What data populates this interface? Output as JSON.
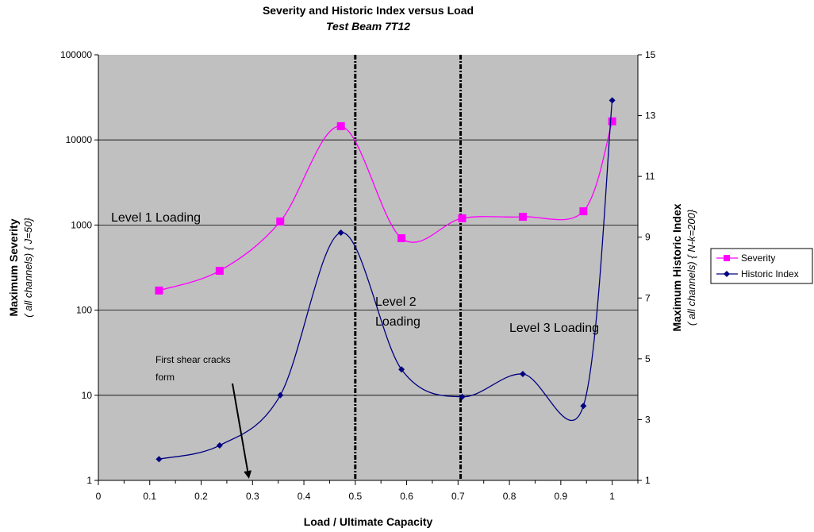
{
  "chart_data": {
    "type": "line",
    "title": "Severity and Historic Index versus Load",
    "subtitle": "Test Beam 7T12",
    "xlabel": "Load / Ultimate Capacity",
    "ylabel_left": "Maximum Severity",
    "ylabel_left_sub": "( all channels) { J=50}",
    "ylabel_right": "Maximum Historic Index",
    "ylabel_right_sub": "( all channels) { N-k=200}",
    "xlim": [
      0,
      1.05
    ],
    "x_ticks": [
      "0",
      "0.1",
      "0.2",
      "0.3",
      "0.4",
      "0.5",
      "0.6",
      "0.7",
      "0.8",
      "0.9",
      "1"
    ],
    "y_left_scale": "log",
    "y_left_lim": [
      1,
      100000
    ],
    "y_left_ticks": [
      "1",
      "10",
      "100",
      "1000",
      "10000",
      "100000"
    ],
    "y_right_lim": [
      1,
      15
    ],
    "y_right_ticks": [
      "1",
      "3",
      "5",
      "7",
      "9",
      "11",
      "13",
      "15"
    ],
    "grid": "horizontal",
    "plot_background": "#c0c0c0",
    "legend_position": "right",
    "series": [
      {
        "name": "Severity",
        "axis": "left",
        "color": "#ff00ff",
        "marker": "square",
        "x": [
          0.118,
          0.236,
          0.354,
          0.472,
          0.59,
          0.708,
          0.826,
          0.944,
          1.0
        ],
        "values": [
          170,
          290,
          1100,
          14500,
          700,
          1200,
          1250,
          1450,
          16500
        ]
      },
      {
        "name": "Historic Index",
        "axis": "right",
        "color": "#000080",
        "marker": "diamond",
        "x": [
          0.118,
          0.236,
          0.354,
          0.472,
          0.59,
          0.708,
          0.826,
          0.944,
          1.0
        ],
        "values": [
          1.7,
          2.15,
          3.8,
          9.15,
          4.65,
          3.75,
          4.5,
          3.45,
          13.5
        ]
      }
    ],
    "vertical_lines": [
      0.5,
      0.705
    ],
    "annotations": {
      "level1": "Level 1 Loading",
      "level2_line1": "Level 2",
      "level2_line2": "Loading",
      "level3": "Level 3 Loading",
      "cracks_line1": "First shear cracks",
      "cracks_line2": "form"
    }
  }
}
